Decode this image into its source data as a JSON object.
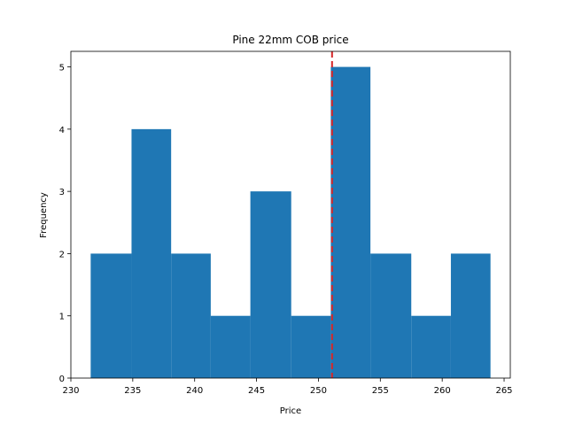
{
  "chart_data": {
    "type": "histogram",
    "title": "Pine 22mm COB price",
    "xlabel": "Price",
    "ylabel": "Frequency",
    "bins": [
      {
        "start": 231.6,
        "end": 234.9,
        "count": 2
      },
      {
        "start": 234.9,
        "end": 238.1,
        "count": 4
      },
      {
        "start": 238.1,
        "end": 241.3,
        "count": 2
      },
      {
        "start": 241.3,
        "end": 244.5,
        "count": 1
      },
      {
        "start": 244.5,
        "end": 247.8,
        "count": 3
      },
      {
        "start": 247.8,
        "end": 251.0,
        "count": 1
      },
      {
        "start": 251.0,
        "end": 254.2,
        "count": 5
      },
      {
        "start": 254.2,
        "end": 257.5,
        "count": 2
      },
      {
        "start": 257.5,
        "end": 260.7,
        "count": 1
      },
      {
        "start": 260.7,
        "end": 263.9,
        "count": 2
      }
    ],
    "bar_color": "#1f77b4",
    "reference_line": {
      "x": 251.1,
      "color": "#d62728",
      "style": "dashed"
    },
    "xlim": [
      230,
      265.5
    ],
    "ylim": [
      0,
      5.25
    ],
    "xticks": [
      230,
      235,
      240,
      245,
      250,
      255,
      260,
      265
    ],
    "yticks": [
      0,
      1,
      2,
      3,
      4,
      5
    ]
  }
}
